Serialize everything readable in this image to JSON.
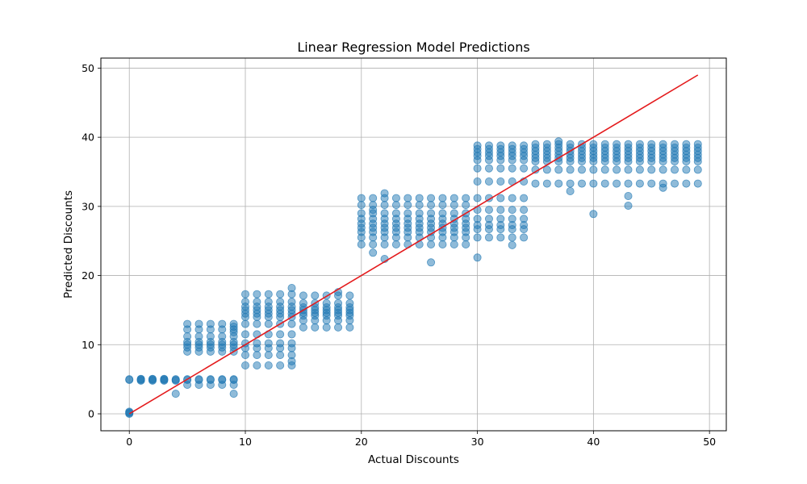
{
  "chart_data": {
    "type": "scatter",
    "title": "Linear Regression Model Predictions",
    "xlabel": "Actual Discounts",
    "ylabel": "Predicted Discounts",
    "xlim": [
      -2.45,
      51.45
    ],
    "ylim": [
      -2.45,
      51.45
    ],
    "xticks": [
      0,
      10,
      20,
      30,
      40,
      50
    ],
    "yticks": [
      0,
      10,
      20,
      30,
      40,
      50
    ],
    "grid": true,
    "point_color": "#1f77b4",
    "point_alpha": 0.5,
    "line_color": "#e41a1c",
    "reference_line": {
      "x": [
        0,
        49
      ],
      "y": [
        0,
        49
      ]
    },
    "clusters": [
      {
        "x_from": 0,
        "x_to": 0,
        "y": [
          0,
          0.1,
          0.2,
          0.3,
          4.9,
          5.0
        ]
      },
      {
        "x_from": 1,
        "x_to": 3,
        "y": [
          4.8,
          4.9,
          5.0,
          5.05
        ]
      },
      {
        "x_from": 4,
        "x_to": 4,
        "y": [
          2.9,
          4.8,
          4.9,
          5.0
        ]
      },
      {
        "x_from": 5,
        "x_to": 9,
        "y": [
          4.2,
          4.9,
          5.0,
          9.0,
          9.6,
          10.0,
          10.4,
          11.2,
          12.2,
          13.0
        ]
      },
      {
        "x_from": 9,
        "x_to": 9,
        "y": [
          2.9,
          11.8,
          12.6
        ]
      },
      {
        "x_from": 10,
        "x_to": 14,
        "y": [
          7.0,
          8.5,
          9.5,
          10.2,
          11.5,
          13.0,
          14.0,
          14.5,
          15.0,
          15.5,
          16.2,
          17.3
        ]
      },
      {
        "x_from": 14,
        "x_to": 14,
        "y": [
          7.6,
          18.2
        ]
      },
      {
        "x_from": 15,
        "x_to": 19,
        "y": [
          12.5,
          13.5,
          14.2,
          14.6,
          15.0,
          15.4,
          16.0,
          17.1
        ]
      },
      {
        "x_from": 18,
        "x_to": 18,
        "y": [
          17.6
        ]
      },
      {
        "x_from": 20,
        "x_to": 29,
        "y": [
          24.5,
          25.5,
          26.3,
          26.9,
          27.5,
          28.2,
          29.0,
          30.2,
          31.2
        ]
      },
      {
        "x_from": 21,
        "x_to": 21,
        "y": [
          23.3,
          29.5
        ]
      },
      {
        "x_from": 22,
        "x_to": 22,
        "y": [
          22.4,
          31.9
        ]
      },
      {
        "x_from": 26,
        "x_to": 26,
        "y": [
          21.9
        ]
      },
      {
        "x_from": 30,
        "x_to": 34,
        "y": [
          25.5,
          26.7,
          27.3,
          28.2,
          29.5,
          31.2,
          33.6,
          35.5,
          36.7,
          37.3,
          37.8,
          38.3,
          38.8
        ]
      },
      {
        "x_from": 30,
        "x_to": 30,
        "y": [
          22.6
        ]
      },
      {
        "x_from": 33,
        "x_to": 33,
        "y": [
          24.4
        ]
      },
      {
        "x_from": 35,
        "x_to": 49,
        "y": [
          33.3,
          35.3,
          36.5,
          37.0,
          37.5,
          38.0,
          38.5,
          39.0
        ]
      },
      {
        "x_from": 37,
        "x_to": 37,
        "y": [
          39.4
        ]
      },
      {
        "x_from": 38,
        "x_to": 38,
        "y": [
          32.2
        ]
      },
      {
        "x_from": 40,
        "x_to": 40,
        "y": [
          28.9
        ]
      },
      {
        "x_from": 43,
        "x_to": 43,
        "y": [
          30.1,
          31.5
        ]
      },
      {
        "x_from": 46,
        "x_to": 46,
        "y": [
          32.7
        ]
      }
    ]
  }
}
